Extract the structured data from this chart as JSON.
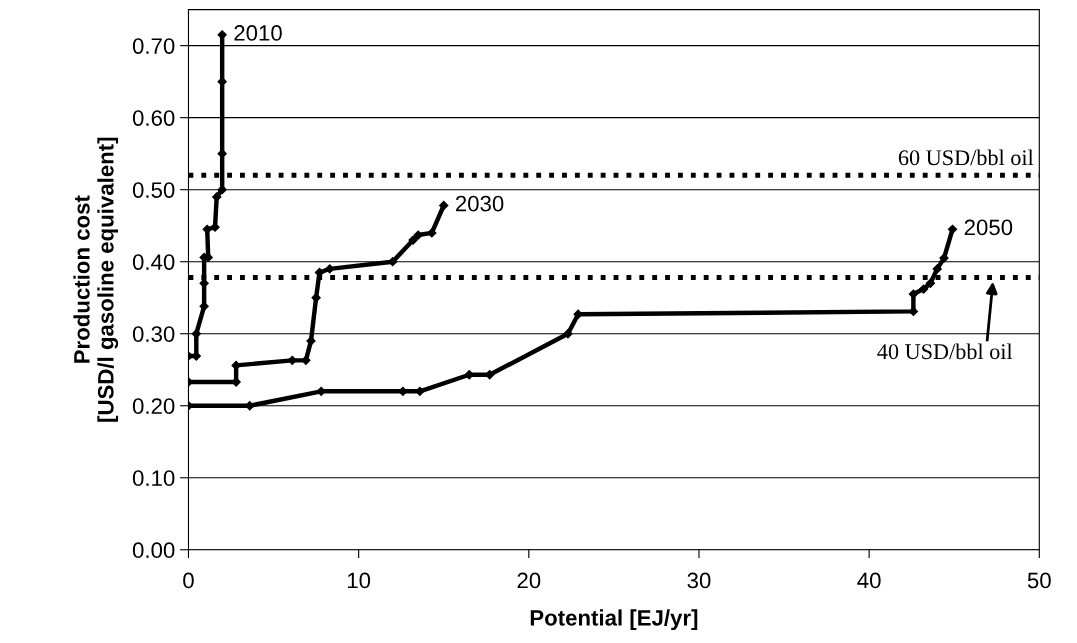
{
  "chart_data": {
    "type": "line",
    "xlabel": "Potential [EJ/yr]",
    "ylabel": "Production cost\n[USD/l gasoline equivalent]",
    "xlim": [
      0,
      50
    ],
    "xticks": [
      0,
      10,
      20,
      30,
      40,
      50
    ],
    "ylim": [
      0,
      0.75
    ],
    "yticks": [
      {
        "value": 0,
        "label": "0.00"
      },
      {
        "value": 0.1,
        "label": "0.10"
      },
      {
        "value": 0.2,
        "label": "0.20"
      },
      {
        "value": 0.3,
        "label": "0.30"
      },
      {
        "value": 0.4,
        "label": "0.40"
      },
      {
        "value": 0.5,
        "label": "0.50"
      },
      {
        "value": 0.6,
        "label": "0.60"
      },
      {
        "value": 0.7,
        "label": "0.70"
      }
    ],
    "grid": "y",
    "legend": false,
    "marker": "diamond",
    "line_style": "solid",
    "series": [
      {
        "name": "2010",
        "color": "#000000",
        "x": [
          0,
          0.46,
          0.46,
          0.92,
          0.92,
          0.92,
          1.16,
          1.1,
          1.56,
          1.66,
          1.98,
          1.98,
          1.98,
          1.98
        ],
        "values": [
          0.269,
          0.269,
          0.3,
          0.338,
          0.37,
          0.406,
          0.406,
          0.445,
          0.448,
          0.49,
          0.5,
          0.55,
          0.65,
          0.715
        ]
      },
      {
        "name": "2030",
        "color": "#000000",
        "x": [
          0,
          2.8,
          2.8,
          6.1,
          6.9,
          7.2,
          7.5,
          7.7,
          8.3,
          12.0,
          13.2,
          13.5,
          14.3,
          15.0
        ],
        "values": [
          0.233,
          0.233,
          0.256,
          0.263,
          0.263,
          0.29,
          0.35,
          0.385,
          0.39,
          0.4,
          0.43,
          0.437,
          0.44,
          0.478
        ]
      },
      {
        "name": "2050",
        "color": "#000000",
        "x": [
          0,
          3.6,
          7.8,
          12.6,
          13.6,
          16.5,
          17.7,
          22.3,
          22.9,
          42.6,
          42.6,
          43.2,
          43.6,
          44.0,
          44.4,
          44.9
        ],
        "values": [
          0.2,
          0.2,
          0.22,
          0.22,
          0.22,
          0.243,
          0.243,
          0.3,
          0.327,
          0.331,
          0.355,
          0.362,
          0.37,
          0.39,
          0.405,
          0.445
        ]
      }
    ],
    "ref_lines": [
      {
        "axis": "y",
        "value": 0.52,
        "label": "60 USD/bbl oil",
        "color": "#000000",
        "line_style": "dotted"
      },
      {
        "axis": "y",
        "value": 0.378,
        "label": "40 USD/bbl oil",
        "color": "#000000",
        "line_style": "dotted"
      }
    ]
  }
}
